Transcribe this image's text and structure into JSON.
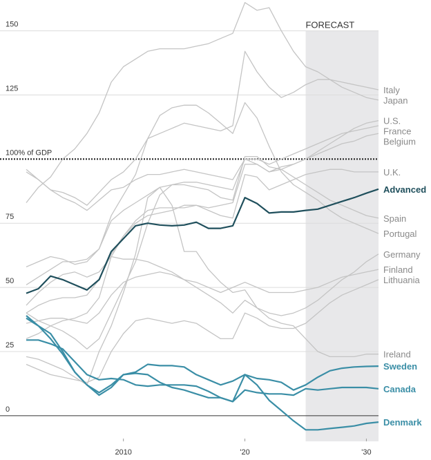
{
  "chart_data": {
    "type": "line",
    "forecast": {
      "label": "FORECAST",
      "start": 2025,
      "end": 2031
    },
    "reference_line": 100,
    "xlim": [
      2002,
      2031
    ],
    "ylim": [
      -10,
      162
    ],
    "xticks": [
      {
        "value": 2010,
        "label": "2010"
      },
      {
        "value": 2020,
        "label": "'20"
      },
      {
        "value": 2030,
        "label": "'30"
      }
    ],
    "yticks": [
      0,
      25,
      50,
      75,
      {
        "value": 100,
        "label": "100% of GDP"
      },
      125,
      150
    ],
    "x": [
      2002,
      2003,
      2004,
      2005,
      2006,
      2007,
      2008,
      2009,
      2010,
      2011,
      2012,
      2013,
      2014,
      2015,
      2016,
      2017,
      2018,
      2019,
      2020,
      2021,
      2022,
      2023,
      2024,
      2025,
      2026,
      2027,
      2028,
      2029,
      2030,
      2031
    ],
    "series": [
      {
        "name": "Italy",
        "color": "#c4c4c4",
        "label_color": "#8a8a8a",
        "values": [
          96,
          92,
          88,
          87,
          85,
          82,
          87,
          92,
          95,
          100,
          108,
          110,
          112,
          114,
          113,
          112,
          111,
          113,
          142,
          134,
          128,
          124,
          126,
          129,
          131,
          131,
          130,
          129,
          128,
          127
        ]
      },
      {
        "name": "Japan",
        "color": "#c4c4c4",
        "label_color": "#8a8a8a",
        "values": [
          83,
          89,
          93,
          100,
          104,
          110,
          118,
          130,
          136,
          139,
          142,
          143,
          143,
          143,
          144,
          145,
          147,
          149,
          161,
          158,
          159,
          150,
          142,
          136,
          134,
          131,
          128,
          126,
          124,
          123
        ]
      },
      {
        "name": "U.S.",
        "color": "#c4c4c4",
        "label_color": "#8a8a8a",
        "values": [
          40,
          43,
          45,
          46,
          46,
          47,
          53,
          63,
          70,
          76,
          80,
          81,
          81,
          81,
          82,
          81,
          82,
          83,
          98,
          98,
          95,
          97,
          98,
          100,
          103,
          106,
          109,
          112,
          114,
          115
        ]
      },
      {
        "name": "France",
        "color": "#c4c4c4",
        "label_color": "#8a8a8a",
        "values": [
          58,
          60,
          62,
          61,
          59,
          60,
          65,
          76,
          80,
          83,
          86,
          89,
          90,
          91,
          91,
          90,
          89,
          88,
          100,
          100,
          98,
          100,
          102,
          104,
          106,
          108,
          110,
          111,
          112,
          113
        ]
      },
      {
        "name": "Belgium",
        "color": "#c4c4c4",
        "label_color": "#8a8a8a",
        "values": [
          95,
          92,
          88,
          85,
          83,
          80,
          84,
          88,
          89,
          92,
          94,
          94,
          95,
          96,
          95,
          94,
          93,
          92,
          100,
          98,
          95,
          96,
          98,
          100,
          102,
          104,
          106,
          107,
          109,
          110
        ]
      },
      {
        "name": "U.K.",
        "color": "#c4c4c4",
        "label_color": "#8a8a8a",
        "values": [
          30,
          32,
          35,
          37,
          38,
          40,
          46,
          62,
          70,
          75,
          78,
          79,
          80,
          82,
          82,
          80,
          78,
          77,
          94,
          93,
          88,
          90,
          92,
          94,
          95,
          96,
          96,
          95,
          95,
          95
        ]
      },
      {
        "name": "Advanced",
        "color": "#1f4f5c",
        "label_color": "#1f4f5c",
        "values": [
          47.7,
          49.5,
          54.4,
          53,
          51,
          49,
          53,
          64,
          69,
          74,
          75,
          74.3,
          74,
          74.3,
          75.4,
          73,
          73,
          74,
          85,
          82.7,
          79,
          79.4,
          79.4,
          80,
          80.5,
          82,
          83.5,
          85,
          86.7,
          88.3
        ]
      },
      {
        "name": "Spain",
        "color": "#c4c4c4",
        "label_color": "#8a8a8a",
        "values": [
          40,
          37,
          35,
          33,
          30,
          26,
          30,
          40,
          50,
          60,
          75,
          86,
          90,
          90,
          89,
          88,
          85,
          84,
          101,
          101,
          97,
          96,
          93,
          90,
          87,
          84,
          82,
          80,
          78,
          77
        ]
      },
      {
        "name": "Portugal",
        "color": "#c4c4c4",
        "label_color": "#8a8a8a",
        "values": [
          51,
          54,
          57,
          60,
          60,
          61,
          65,
          78,
          86,
          94,
          108,
          117,
          120,
          121,
          121,
          118,
          114,
          110,
          122,
          116,
          105,
          95,
          90,
          87,
          84,
          80,
          77,
          75,
          73,
          71
        ]
      },
      {
        "name": "Germany",
        "color": "#c4c4c4",
        "label_color": "#8a8a8a",
        "values": [
          43,
          48,
          52,
          55,
          56,
          54,
          56,
          62,
          61,
          61,
          60,
          58,
          56,
          53,
          50,
          47,
          44,
          40,
          45,
          42,
          40,
          39,
          40,
          42,
          45,
          49,
          53,
          56,
          60,
          63
        ]
      },
      {
        "name": "Finland",
        "color": "#c4c4c4",
        "label_color": "#8a8a8a",
        "values": [
          36,
          37,
          38,
          38,
          37,
          36,
          40,
          47,
          52,
          54,
          55,
          56,
          55,
          53,
          52,
          50,
          48,
          50,
          52,
          50,
          48,
          48,
          48,
          49,
          50,
          52,
          54,
          55,
          56,
          57
        ]
      },
      {
        "name": "Lithuania",
        "color": "#c4c4c4",
        "label_color": "#8a8a8a",
        "values": [
          20,
          18,
          16,
          15,
          14,
          13,
          15,
          25,
          32,
          37,
          38,
          37,
          36,
          37,
          36,
          33,
          30,
          30,
          40,
          38,
          35,
          34,
          34,
          36,
          40,
          44,
          47,
          49,
          51,
          53
        ]
      },
      {
        "name": "Ireland",
        "color": "#c4c4c4",
        "label_color": "#8a8a8a",
        "values": [
          23,
          22,
          20,
          18,
          15,
          12,
          25,
          35,
          48,
          63,
          85,
          89,
          82,
          64,
          64,
          57,
          52,
          48,
          49,
          42,
          38,
          36,
          35,
          30,
          25,
          23,
          23,
          23,
          24,
          24
        ]
      },
      {
        "name": "Sweden",
        "color": "#3a8ea6",
        "label_color": "#3a8ea6",
        "values": [
          38,
          35,
          32,
          25,
          17,
          12,
          9,
          12,
          16,
          17,
          20,
          19.5,
          19.5,
          19,
          16,
          14,
          12,
          13.5,
          16,
          14.5,
          14,
          13,
          10,
          12,
          15,
          17.5,
          18.5,
          19,
          19.2,
          19.3
        ]
      },
      {
        "name": "Canada",
        "color": "#3a8ea6",
        "label_color": "#3a8ea6",
        "values": [
          29.5,
          29.5,
          28,
          26,
          21,
          16,
          14,
          14.5,
          14,
          12,
          11.5,
          12,
          12,
          12,
          11.5,
          9.5,
          7,
          5.5,
          10,
          9,
          8.5,
          8.5,
          8,
          10.5,
          10,
          10.5,
          11,
          11,
          11,
          10.5
        ]
      },
      {
        "name": "Denmark",
        "color": "#3a8ea6",
        "label_color": "#3a8ea6",
        "values": [
          39,
          35,
          30,
          24,
          17,
          12,
          8,
          11,
          16,
          16.5,
          16,
          13,
          11,
          10,
          8.5,
          7,
          7,
          5.5,
          16,
          12,
          6,
          2,
          -2,
          -5.5,
          -5.5,
          -5,
          -4.5,
          -4,
          -3,
          -2.5
        ]
      }
    ]
  }
}
